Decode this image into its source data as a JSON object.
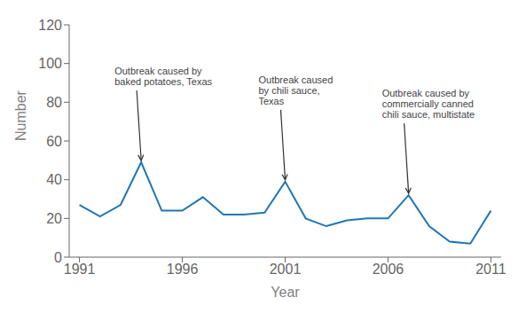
{
  "chart_data": {
    "type": "line",
    "x": [
      1991,
      1992,
      1993,
      1994,
      1995,
      1996,
      1997,
      1998,
      1999,
      2000,
      2001,
      2002,
      2003,
      2004,
      2005,
      2006,
      2007,
      2008,
      2009,
      2010,
      2011
    ],
    "values": [
      27,
      21,
      27,
      49,
      24,
      24,
      31,
      22,
      22,
      23,
      39,
      20,
      16,
      19,
      20,
      20,
      32,
      16,
      8,
      7,
      24
    ],
    "color": "#1f77b4",
    "xlabel": "Year",
    "ylabel": "Number",
    "xlim": [
      1990.5,
      2011.5
    ],
    "xticks": [
      1991,
      1996,
      2001,
      2006,
      2011
    ],
    "ylim": [
      0,
      120
    ],
    "yticks": [
      0,
      20,
      40,
      60,
      80,
      100,
      120
    ],
    "annotations": [
      {
        "text": "Outbreak caused by\nbaked potatoes, Texas",
        "x": 1994,
        "y": 49
      },
      {
        "text": "Outbreak caused\nby chili sauce,\nTexas",
        "x": 2001,
        "y": 39
      },
      {
        "text": "Outbreak caused by\ncommercially canned\nchili sauce, multistate",
        "x": 2007,
        "y": 32
      }
    ]
  }
}
